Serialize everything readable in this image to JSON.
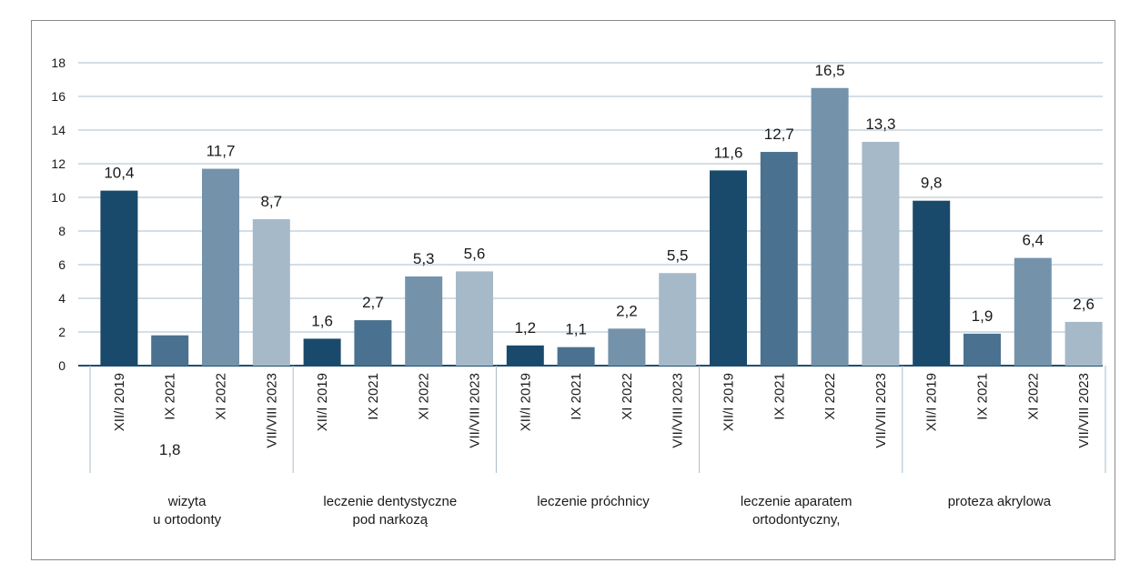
{
  "chart_data": {
    "type": "bar",
    "ylim": [
      0,
      18
    ],
    "y_ticks": [
      "0",
      "2",
      "4",
      "6",
      "8",
      "10",
      "12",
      "14",
      "16",
      "18"
    ],
    "grid": true,
    "legend": "none",
    "categories": [
      "XII/I 2019",
      "IX 2021",
      "XI 2022",
      "VII/VIII 2023"
    ],
    "category_colors": [
      "#1a4a6b",
      "#4a7290",
      "#7493ab",
      "#a6b9c8"
    ],
    "groups": [
      {
        "label_lines": [
          "wizyta",
          "u ortodonty"
        ],
        "values": [
          10.4,
          1.8,
          11.7,
          8.7
        ],
        "value_labels": [
          "10,4",
          "1,8",
          "11,7",
          "8,7"
        ]
      },
      {
        "label_lines": [
          "leczenie dentystyczne",
          "pod narkozą"
        ],
        "values": [
          1.6,
          2.7,
          5.3,
          5.6
        ],
        "value_labels": [
          "1,6",
          "2,7",
          "5,3",
          "5,6"
        ]
      },
      {
        "label_lines": [
          "leczenie próchnicy"
        ],
        "values": [
          1.2,
          1.1,
          2.2,
          5.5
        ],
        "value_labels": [
          "1,2",
          "1,1",
          "2,2",
          "5,5"
        ]
      },
      {
        "label_lines": [
          "leczenie aparatem",
          "ortodontyczny,"
        ],
        "values": [
          11.6,
          12.7,
          16.5,
          13.3
        ],
        "value_labels": [
          "11,6",
          "12,7",
          "16,5",
          "13,3"
        ]
      },
      {
        "label_lines": [
          "proteza akrylowa"
        ],
        "values": [
          9.8,
          1.9,
          6.4,
          2.6
        ],
        "value_labels": [
          "9,8",
          "1,9",
          "6,4",
          "2,6"
        ]
      }
    ]
  }
}
